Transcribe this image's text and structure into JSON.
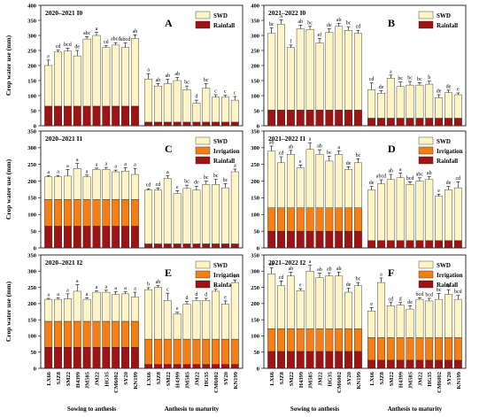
{
  "colors": {
    "SWD": "#FDF5C5",
    "Irrigation": "#F57F17",
    "Rainfall": "#9E1414"
  },
  "chart_data": [
    {
      "type": "bar",
      "stacked": true,
      "panel": "A",
      "title": "2020–2021 I0",
      "ylabel": "Crop water use (mm)",
      "ylim": [
        0,
        400
      ],
      "yticks": [
        0,
        50,
        100,
        150,
        200,
        250,
        300,
        350,
        400
      ],
      "legend": [
        "SWD",
        "Rainfall"
      ],
      "legend_position": "top-right",
      "stages": [
        "Sowing to anthesis",
        "Anthesis to maturity"
      ],
      "categories": [
        "LX66",
        "SJZ8",
        "SM22",
        "H4399",
        "JM585",
        "JM22",
        "HG35",
        "CM6002",
        "SY20",
        "KN199"
      ],
      "series": [
        {
          "name": "Rainfall",
          "stage1": [
            65,
            65,
            65,
            65,
            65,
            65,
            65,
            65,
            65,
            65
          ],
          "stage2": [
            12,
            12,
            12,
            12,
            12,
            12,
            12,
            12,
            12,
            12
          ]
        },
        {
          "name": "SWD",
          "stage1": [
            135,
            180,
            183,
            167,
            223,
            235,
            195,
            203,
            195,
            225
          ],
          "stage2": [
            143,
            120,
            128,
            138,
            108,
            63,
            113,
            83,
            83,
            73
          ]
        }
      ],
      "errors": {
        "stage1": [
          18,
          6,
          10,
          18,
          8,
          10,
          6,
          8,
          15,
          12
        ],
        "stage2": [
          18,
          8,
          14,
          10,
          12,
          10,
          15,
          8,
          6,
          12
        ]
      },
      "labels": {
        "stage1": [
          "e",
          "cd",
          "bcd",
          "de",
          "abc",
          "a",
          "cd",
          "abcd",
          "abcd",
          "ab"
        ],
        "stage2": [
          "a",
          "ab",
          "ab",
          "ab",
          "bc",
          "d",
          "bc",
          "c",
          "c",
          "c"
        ]
      }
    },
    {
      "type": "bar",
      "stacked": true,
      "panel": "B",
      "title": "2021–2022 I0",
      "ylim": [
        0,
        400
      ],
      "yticks": [
        0,
        50,
        100,
        150,
        200,
        250,
        300,
        350,
        400
      ],
      "legend": [
        "SWD",
        "Rainfall"
      ],
      "legend_position": "top-right",
      "stages": [
        "Sowing to anthesis",
        "Anthesis to maturity"
      ],
      "categories": [
        "LX66",
        "SJZ8",
        "SM22",
        "H4399",
        "JM585",
        "JM22",
        "HG35",
        "CM6002",
        "SY20",
        "KN199"
      ],
      "series": [
        {
          "name": "Rainfall",
          "stage1": [
            52,
            52,
            52,
            52,
            52,
            52,
            52,
            52,
            52,
            52
          ],
          "stage2": [
            25,
            25,
            25,
            25,
            25,
            25,
            25,
            25,
            25,
            25
          ]
        },
        {
          "name": "SWD",
          "stage1": [
            255,
            285,
            208,
            270,
            268,
            223,
            258,
            278,
            265,
            255
          ],
          "stage2": [
            95,
            83,
            133,
            105,
            110,
            110,
            113,
            68,
            85,
            78
          ]
        }
      ],
      "errors": {
        "stage1": [
          18,
          15,
          8,
          12,
          10,
          15,
          12,
          10,
          12,
          10
        ],
        "stage2": [
          22,
          8,
          10,
          15,
          12,
          8,
          10,
          10,
          8,
          6
        ]
      },
      "labels": {
        "stage1": [
          "bc",
          "a",
          "f",
          "ab",
          "bc",
          "ef",
          "de",
          "ab",
          "bc",
          "cd"
        ],
        "stage2": [
          "cd",
          "de",
          "a",
          "bc",
          "bc",
          "bc",
          "b",
          "de",
          "de",
          "e"
        ]
      }
    },
    {
      "type": "bar",
      "stacked": true,
      "panel": "C",
      "title": "2020–2021 I1",
      "ylabel": "Crop water use (mm)",
      "ylim": [
        0,
        350
      ],
      "yticks": [
        0,
        50,
        100,
        150,
        200,
        250,
        300,
        350
      ],
      "legend": [
        "SWD",
        "Irrigation",
        "Rainfall"
      ],
      "legend_position": "top-right",
      "stages": [
        "Sowing to anthesis",
        "Anthesis to maturity"
      ],
      "categories": [
        "LX66",
        "SJZ8",
        "SM22",
        "H4399",
        "JM585",
        "JM22",
        "HG35",
        "CM6002",
        "SY20",
        "KN199"
      ],
      "series": [
        {
          "name": "Rainfall",
          "stage1": [
            65,
            65,
            65,
            65,
            65,
            65,
            65,
            65,
            65,
            65
          ],
          "stage2": [
            12,
            12,
            12,
            12,
            12,
            12,
            12,
            12,
            12,
            12
          ]
        },
        {
          "name": "Irrigation",
          "stage1": [
            80,
            80,
            80,
            80,
            80,
            80,
            80,
            80,
            80,
            80
          ],
          "stage2": [
            0,
            0,
            0,
            0,
            0,
            0,
            0,
            0,
            0,
            0
          ]
        },
        {
          "name": "SWD",
          "stage1": [
            68,
            68,
            70,
            93,
            68,
            90,
            90,
            83,
            85,
            75
          ],
          "stage2": [
            161,
            161,
            196,
            151,
            166,
            161,
            178,
            178,
            168,
            216
          ]
        }
      ],
      "errors": {
        "stage1": [
          3,
          4,
          20,
          15,
          5,
          4,
          6,
          5,
          10,
          18
        ],
        "stage2": [
          4,
          6,
          8,
          8,
          10,
          12,
          10,
          15,
          12,
          8
        ]
      },
      "labels": {
        "stage1": [
          "a",
          "a",
          "a",
          "a",
          "a",
          "a",
          "a",
          "a",
          "a",
          "a"
        ],
        "stage2": [
          "cd",
          "cd",
          "a",
          "e",
          "bc",
          "de",
          "bc",
          "bc",
          "bc",
          "a"
        ]
      }
    },
    {
      "type": "bar",
      "stacked": true,
      "panel": "D",
      "title": "2021–2022 I1",
      "ylim": [
        0,
        350
      ],
      "yticks": [
        0,
        50,
        100,
        150,
        200,
        250,
        300,
        350
      ],
      "legend": [
        "SWD",
        "Irrigation",
        "Rainfall"
      ],
      "legend_position": "top-right",
      "stages": [
        "Sowing to anthesis",
        "Anthesis to maturity"
      ],
      "categories": [
        "LX66",
        "SJZ8",
        "SM22",
        "H4399",
        "JM585",
        "JM22",
        "HG35",
        "CM6002",
        "SY20",
        "KN199"
      ],
      "series": [
        {
          "name": "Rainfall",
          "stage1": [
            50,
            50,
            50,
            50,
            50,
            50,
            50,
            50,
            50,
            50
          ],
          "stage2": [
            22,
            22,
            22,
            22,
            22,
            22,
            22,
            22,
            22,
            22
          ]
        },
        {
          "name": "Irrigation",
          "stage1": [
            70,
            70,
            70,
            70,
            70,
            70,
            70,
            70,
            70,
            70
          ],
          "stage2": [
            0,
            0,
            0,
            0,
            0,
            0,
            0,
            0,
            0,
            0
          ]
        },
        {
          "name": "SWD",
          "stage1": [
            170,
            135,
            160,
            120,
            175,
            160,
            140,
            160,
            115,
            135
          ],
          "stage2": [
            152,
            170,
            183,
            188,
            168,
            178,
            183,
            133,
            152,
            158
          ]
        }
      ],
      "errors": {
        "stage1": [
          15,
          18,
          12,
          8,
          20,
          14,
          15,
          10,
          8,
          12
        ],
        "stage2": [
          10,
          12,
          15,
          14,
          8,
          10,
          8,
          6,
          10,
          18
        ]
      },
      "labels": {
        "stage1": [
          "ab",
          "cd",
          "ab",
          "e",
          "a",
          "ab",
          "bc",
          "a",
          "de",
          "bc"
        ],
        "stage2": [
          "de",
          "abcd",
          "ab",
          "a",
          "bcd",
          "abc",
          "ab",
          "e",
          "de",
          "cd"
        ]
      }
    },
    {
      "type": "bar",
      "stacked": true,
      "panel": "E",
      "title": "2020–2021 I2",
      "ylabel": "Crop water use (mm)",
      "ylim": [
        0,
        350
      ],
      "yticks": [
        0,
        50,
        100,
        150,
        200,
        250,
        300,
        350
      ],
      "legend": [
        "SWD",
        "Irrigation",
        "Rainfall"
      ],
      "legend_position": "top-right",
      "stages": [
        "Sowing to anthesis",
        "Anthesis to maturity"
      ],
      "categories": [
        "LX66",
        "SJZ8",
        "SM22",
        "H4399",
        "JM585",
        "JM22",
        "HG35",
        "CM6002",
        "SY20",
        "KN199"
      ],
      "series": [
        {
          "name": "Rainfall",
          "stage1": [
            65,
            65,
            65,
            65,
            65,
            65,
            65,
            65,
            65,
            65
          ],
          "stage2": [
            12,
            12,
            12,
            12,
            12,
            12,
            12,
            12,
            12,
            12
          ]
        },
        {
          "name": "Irrigation",
          "stage1": [
            80,
            80,
            80,
            80,
            80,
            80,
            80,
            80,
            80,
            80
          ],
          "stage2": [
            78,
            78,
            78,
            78,
            78,
            78,
            78,
            78,
            78,
            78
          ]
        },
        {
          "name": "SWD",
          "stage1": [
            68,
            68,
            70,
            93,
            68,
            90,
            90,
            83,
            85,
            75
          ],
          "stage2": [
            153,
            160,
            120,
            78,
            108,
            120,
            120,
            148,
            108,
            175
          ]
        }
      ],
      "errors": {
        "stage1": [
          3,
          4,
          15,
          20,
          5,
          4,
          6,
          8,
          6,
          15
        ],
        "stage2": [
          6,
          5,
          22,
          5,
          8,
          8,
          6,
          6,
          10,
          8
        ]
      },
      "labels": {
        "stage1": [
          "a",
          "a",
          "a",
          "a",
          "a",
          "a",
          "a",
          "a",
          "a",
          "a"
        ],
        "stage2": [
          "b",
          "ab",
          "c",
          "e",
          "d",
          "d",
          "d",
          "c",
          "e",
          "a"
        ]
      }
    },
    {
      "type": "bar",
      "stacked": true,
      "panel": "F",
      "title": "2021–2022 I2",
      "ylim": [
        0,
        350
      ],
      "yticks": [
        0,
        50,
        100,
        150,
        200,
        250,
        300,
        350
      ],
      "legend": [
        "SWD",
        "Irrigation",
        "Rainfall"
      ],
      "legend_position": "top-right",
      "stages": [
        "Sowing to anthesis",
        "Anthesis to maturity"
      ],
      "categories": [
        "LX66",
        "SJZ8",
        "SM22",
        "H4399",
        "JM585",
        "JM22",
        "HG35",
        "CM6002",
        "SY20",
        "KN199"
      ],
      "series": [
        {
          "name": "Rainfall",
          "stage1": [
            52,
            52,
            52,
            52,
            52,
            52,
            52,
            52,
            52,
            52
          ],
          "stage2": [
            25,
            25,
            25,
            25,
            25,
            25,
            25,
            25,
            25,
            25
          ]
        },
        {
          "name": "Irrigation",
          "stage1": [
            70,
            70,
            70,
            70,
            70,
            70,
            70,
            70,
            70,
            70
          ],
          "stage2": [
            70,
            70,
            70,
            70,
            70,
            70,
            70,
            70,
            70,
            70
          ]
        },
        {
          "name": "SWD",
          "stage1": [
            170,
            133,
            163,
            118,
            178,
            158,
            163,
            163,
            113,
            133
          ],
          "stage2": [
            82,
            170,
            98,
            100,
            88,
            118,
            113,
            118,
            133,
            118
          ]
        }
      ],
      "errors": {
        "stage1": [
          18,
          15,
          12,
          6,
          18,
          14,
          10,
          12,
          12,
          10
        ],
        "stage2": [
          10,
          14,
          10,
          8,
          10,
          5,
          8,
          18,
          15,
          12
        ]
      },
      "labels": {
        "stage1": [
          "ab",
          "cd",
          "ab",
          "e",
          "a",
          "ab",
          "ab",
          "ab",
          "de",
          "bc"
        ],
        "stage2": [
          "e",
          "a",
          "cd",
          "d",
          "de",
          "bcd",
          "bcd",
          "bc",
          "b",
          "bcd"
        ]
      }
    }
  ]
}
